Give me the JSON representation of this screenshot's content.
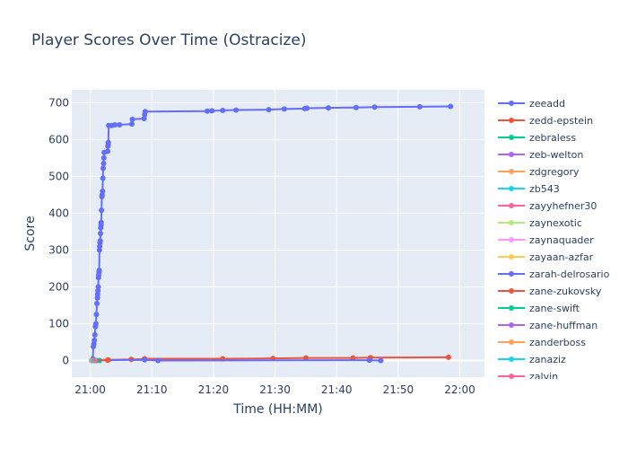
{
  "chart_data": {
    "type": "line",
    "title": "Player Scores Over Time (Ostracize)",
    "xlabel": "Time (HH:MM)",
    "ylabel": "Score",
    "xlim": [
      "20:57",
      "22:04"
    ],
    "ylim": [
      -45,
      735
    ],
    "x_ticks": [
      "21:00",
      "21:10",
      "21:20",
      "21:30",
      "21:40",
      "21:50",
      "22:00"
    ],
    "y_ticks": [
      0,
      100,
      200,
      300,
      400,
      500,
      600,
      700
    ],
    "grid": true,
    "legend_position": "right",
    "series": [
      {
        "name": "zeeadd",
        "color": "#636efa",
        "points": [
          [
            "21:00:20",
            0
          ],
          [
            "21:00:25",
            5
          ],
          [
            "21:00:30",
            38
          ],
          [
            "21:00:35",
            45
          ],
          [
            "21:00:40",
            55
          ],
          [
            "21:00:45",
            70
          ],
          [
            "21:00:50",
            92
          ],
          [
            "21:00:55",
            100
          ],
          [
            "21:01:00",
            125
          ],
          [
            "21:01:05",
            155
          ],
          [
            "21:01:10",
            170
          ],
          [
            "21:01:12",
            180
          ],
          [
            "21:01:15",
            190
          ],
          [
            "21:01:18",
            200
          ],
          [
            "21:01:20",
            225
          ],
          [
            "21:01:22",
            232
          ],
          [
            "21:01:25",
            240
          ],
          [
            "21:01:27",
            245
          ],
          [
            "21:01:30",
            300
          ],
          [
            "21:01:32",
            310
          ],
          [
            "21:01:35",
            320
          ],
          [
            "21:01:37",
            325
          ],
          [
            "21:01:40",
            345
          ],
          [
            "21:01:42",
            360
          ],
          [
            "21:01:45",
            368
          ],
          [
            "21:01:47",
            375
          ],
          [
            "21:01:50",
            408
          ],
          [
            "21:01:53",
            445
          ],
          [
            "21:01:56",
            450
          ],
          [
            "21:02:00",
            460
          ],
          [
            "21:02:03",
            495
          ],
          [
            "21:02:06",
            522
          ],
          [
            "21:02:10",
            535
          ],
          [
            "21:02:13",
            550
          ],
          [
            "21:02:16",
            565
          ],
          [
            "21:02:50",
            568
          ],
          [
            "21:02:52",
            582
          ],
          [
            "21:02:54",
            585
          ],
          [
            "21:02:56",
            592
          ],
          [
            "21:03:00",
            638
          ],
          [
            "21:03:30",
            638
          ],
          [
            "21:04:00",
            640
          ],
          [
            "21:04:45",
            640
          ],
          [
            "21:06:45",
            642
          ],
          [
            "21:06:50",
            655
          ],
          [
            "21:08:45",
            657
          ],
          [
            "21:08:50",
            668
          ],
          [
            "21:08:55",
            676
          ],
          [
            "21:19:00",
            677
          ],
          [
            "21:19:45",
            678
          ],
          [
            "21:21:30",
            679
          ],
          [
            "21:23:40",
            680
          ],
          [
            "21:29:00",
            681
          ],
          [
            "21:31:30",
            683
          ],
          [
            "21:34:50",
            684
          ],
          [
            "21:35:10",
            685
          ],
          [
            "21:38:40",
            686
          ],
          [
            "21:43:10",
            687
          ],
          [
            "21:46:10",
            688
          ],
          [
            "21:53:30",
            689
          ],
          [
            "21:58:30",
            690
          ]
        ]
      },
      {
        "name": "zedd-epstein",
        "color": "#ef553b",
        "points": [
          [
            "21:00:15",
            0
          ],
          [
            "21:00:30",
            2
          ],
          [
            "21:02:55",
            2
          ],
          [
            "21:06:40",
            3
          ],
          [
            "21:08:45",
            4
          ],
          [
            "21:08:50",
            5
          ],
          [
            "21:21:30",
            5
          ],
          [
            "21:29:40",
            6
          ],
          [
            "21:35:00",
            7
          ],
          [
            "21:42:40",
            7
          ],
          [
            "21:45:30",
            8
          ],
          [
            "21:58:10",
            9
          ]
        ]
      },
      {
        "name": "zebraless",
        "color": "#00cc96",
        "points": [
          [
            "21:00:20",
            0
          ],
          [
            "21:00:40",
            0
          ],
          [
            "21:01:00",
            0
          ],
          [
            "21:01:30",
            0
          ]
        ]
      },
      {
        "name": "zeb-welton",
        "color": "#ab63fa",
        "points": [
          [
            "21:00:25",
            0
          ],
          [
            "21:00:50",
            0
          ]
        ]
      },
      {
        "name": "zdgregory",
        "color": "#ffa15a",
        "points": [
          [
            "21:00:10",
            0
          ],
          [
            "21:00:35",
            0
          ]
        ]
      },
      {
        "name": "zb543",
        "color": "#19d3f3",
        "points": [
          [
            "21:00:30",
            0
          ]
        ]
      },
      {
        "name": "zayyhefner30",
        "color": "#ff6692",
        "points": [
          [
            "21:00:40",
            0
          ]
        ]
      },
      {
        "name": "zaynexotic",
        "color": "#b6e880",
        "points": [
          [
            "21:00:45",
            0
          ]
        ]
      },
      {
        "name": "zaynaquader",
        "color": "#ff97ff",
        "points": [
          [
            "21:00:50",
            0
          ]
        ]
      },
      {
        "name": "zayaan-azfar",
        "color": "#fecb52",
        "points": [
          [
            "21:00:55",
            0
          ]
        ]
      },
      {
        "name": "zarah-delrosario",
        "color": "#636efa",
        "points": [
          [
            "21:00:20",
            0
          ],
          [
            "21:00:40",
            1
          ],
          [
            "21:08:50",
            2
          ],
          [
            "21:11:00",
            0
          ],
          [
            "21:45:20",
            1
          ],
          [
            "21:47:10",
            0
          ]
        ]
      },
      {
        "name": "zane-zukovsky",
        "color": "#ef553b",
        "points": [
          [
            "21:00:30",
            0
          ],
          [
            "21:02:50",
            1
          ]
        ]
      },
      {
        "name": "zane-swift",
        "color": "#00cc96",
        "points": [
          [
            "21:01:00",
            0
          ]
        ]
      },
      {
        "name": "zane-huffman",
        "color": "#ab63fa",
        "points": [
          [
            "21:00:35",
            0
          ]
        ]
      },
      {
        "name": "zanderboss",
        "color": "#ffa15a",
        "points": [
          [
            "21:00:15",
            0
          ]
        ]
      },
      {
        "name": "zanaziz",
        "color": "#19d3f3",
        "points": [
          [
            "21:00:25",
            0
          ]
        ]
      },
      {
        "name": "zalvin",
        "color": "#ff6692",
        "points": [
          [
            "21:00:45",
            0
          ]
        ]
      }
    ]
  }
}
